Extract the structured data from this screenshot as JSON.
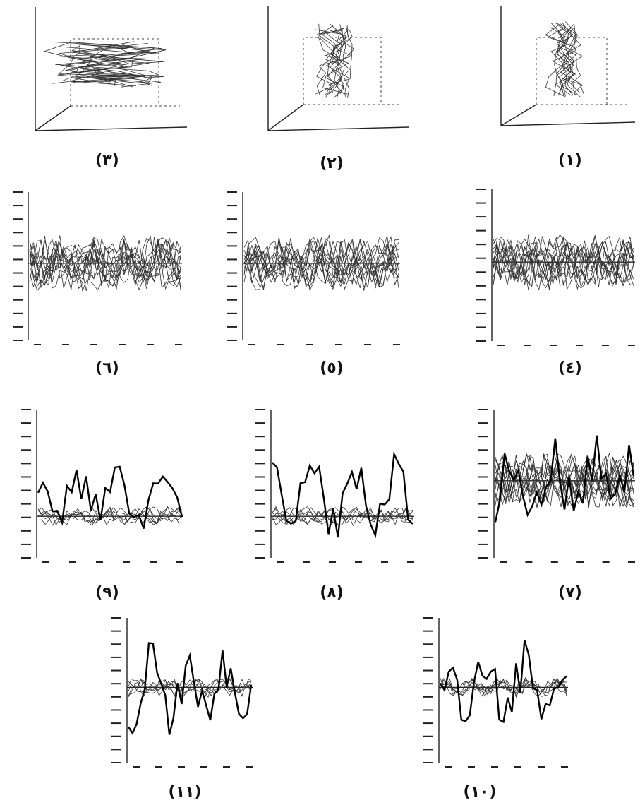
{
  "figure": {
    "panels": [
      {
        "label": "(٣)"
      },
      {
        "label": "(٢)"
      },
      {
        "label": "(١)"
      },
      {
        "label": "(٦)"
      },
      {
        "label": "(٥)"
      },
      {
        "label": "(٤)"
      },
      {
        "label": "(٩)"
      },
      {
        "label": "(٨)"
      },
      {
        "label": "(٧)"
      },
      {
        "label": "(١١)"
      },
      {
        "label": "(١٠)"
      }
    ]
  }
}
